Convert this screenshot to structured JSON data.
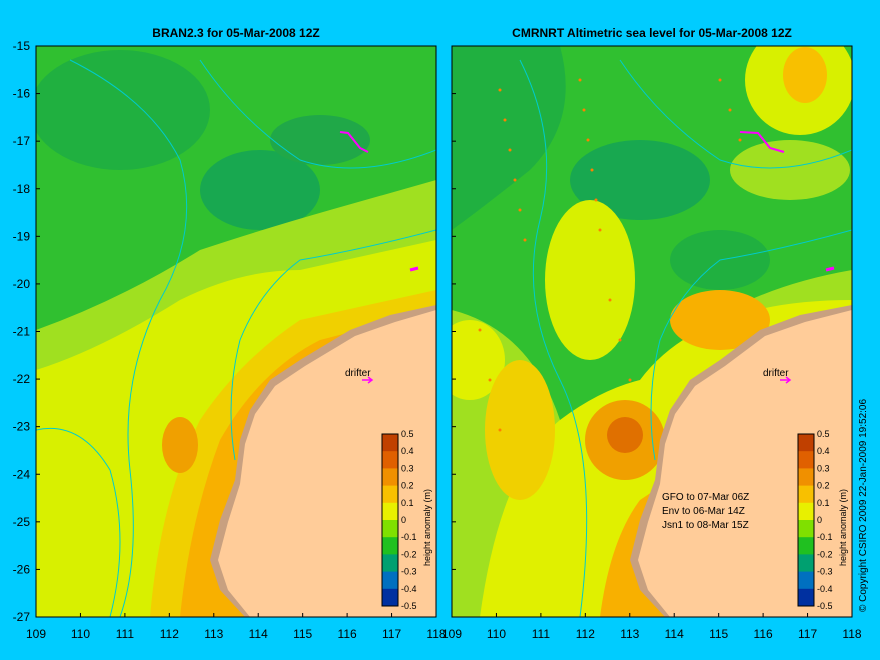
{
  "titles": {
    "left": "BRAN2.3 for 05-Mar-2008 12Z",
    "right": "CMRNRT Altimetric sea level  for 05-Mar-2008 12Z"
  },
  "axes": {
    "y_ticks": [
      "-15",
      "-16",
      "-17",
      "-18",
      "-19",
      "-20",
      "-21",
      "-22",
      "-23",
      "-24",
      "-25",
      "-26",
      "-27"
    ],
    "x_ticks_left": [
      "109",
      "110",
      "111",
      "112",
      "113",
      "114",
      "115",
      "116",
      "117",
      "118"
    ],
    "x_ticks_right": [
      "109",
      "110",
      "111",
      "112",
      "113",
      "114",
      "115",
      "116",
      "117",
      "118"
    ]
  },
  "colorbar": {
    "label": "height anomaly (m)",
    "ticks": [
      "0.5",
      "0.4",
      "0.3",
      "0.2",
      "0.1",
      "0",
      "-0.1",
      "-0.2",
      "-0.3",
      "-0.4",
      "-0.5"
    ],
    "colors": [
      "#c04000",
      "#e06000",
      "#f09000",
      "#f8c000",
      "#e8f000",
      "#80e000",
      "#20c020",
      "#00a070",
      "#0070c0",
      "#0030a0",
      "#000070"
    ]
  },
  "labels": {
    "drifter": "drifter",
    "gfo": "GFO to 07-Mar 06Z",
    "env": "Env to 06-Mar 14Z",
    "jsn": "Jsn1 to 08-Mar 15Z",
    "copyright": "© Copyright CSIRO 2009  22-Jan-2009 19:52:06"
  },
  "colors": {
    "land": "#ffcc99",
    "coastal_shallow": "#c8a080",
    "ocean_base": "#30c030",
    "drifter": "#ff00ff",
    "contour": "#00cccc"
  }
}
